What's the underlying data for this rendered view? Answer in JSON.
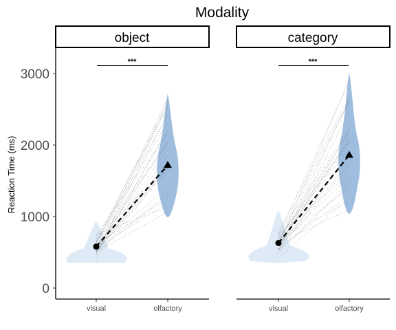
{
  "figure_title": "Modality",
  "chart_data": {
    "type": "violin",
    "title": "Modality",
    "ylabel": "Reaction Time (ms)",
    "ylim": [
      -150,
      3450
    ],
    "yticks": [
      0,
      1000,
      2000,
      3000
    ],
    "categories": [
      "visual",
      "olfactory"
    ],
    "colors": {
      "visual": "#deebf7",
      "olfactory": "#9ebddf"
    },
    "panels": [
      {
        "name": "object",
        "means": {
          "visual": 580,
          "olfactory": 1720
        },
        "visual_range": [
          350,
          940
        ],
        "olfactory_range": [
          990,
          2720
        ],
        "significance": "***",
        "sig_y": 3110
      },
      {
        "name": "category",
        "means": {
          "visual": 630,
          "olfactory": 1860
        },
        "visual_range": [
          350,
          1080
        ],
        "olfactory_range": [
          1040,
          3010
        ],
        "significance": "***",
        "sig_y": 3110
      }
    ]
  }
}
